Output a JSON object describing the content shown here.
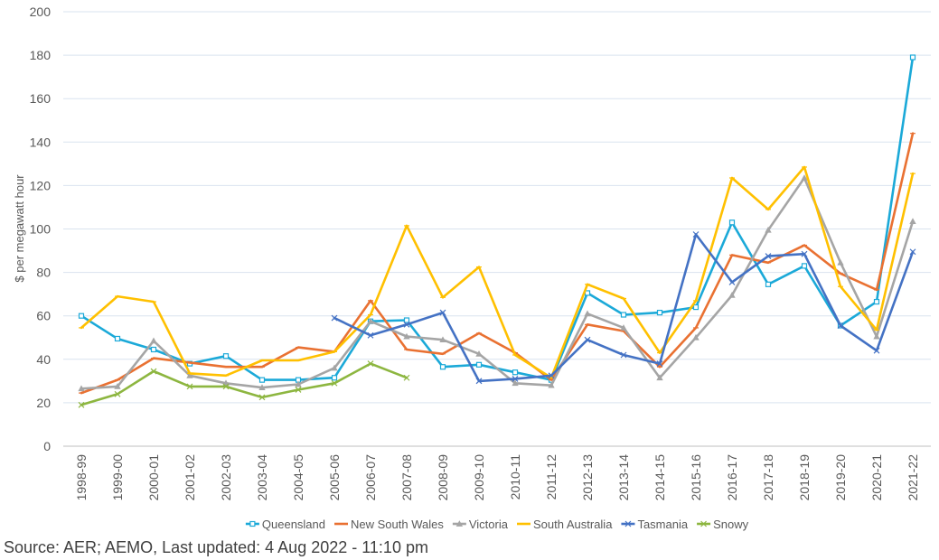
{
  "chart_data": {
    "type": "line",
    "ylabel": "$ per megawatt hour",
    "ylim": [
      0,
      200
    ],
    "yticks": [
      0,
      20,
      40,
      60,
      80,
      100,
      120,
      140,
      160,
      180,
      200
    ],
    "grid": true,
    "legend_position": "bottom",
    "categories": [
      "1998-99",
      "1999-00",
      "2000-01",
      "2001-02",
      "2002-03",
      "2003-04",
      "2004-05",
      "2005-06",
      "2006-07",
      "2007-08",
      "2008-09",
      "2009-10",
      "2010-11",
      "2011-12",
      "2012-13",
      "2013-14",
      "2014-15",
      "2015-16",
      "2016-17",
      "2017-18",
      "2018-19",
      "2019-20",
      "2020-21",
      "2021-22"
    ],
    "series": [
      {
        "name": "Queensland",
        "color": "#1BA9D8",
        "marker": "square",
        "values": [
          60,
          49.5,
          44.5,
          38,
          41.5,
          30.5,
          30.5,
          31.5,
          57.5,
          58,
          36.5,
          37.5,
          34,
          30.5,
          70.5,
          60.5,
          61.5,
          64,
          103,
          74.5,
          83,
          55.5,
          66.5,
          179
        ]
      },
      {
        "name": "New South Wales",
        "color": "#E97132",
        "marker": "line",
        "values": [
          24.5,
          30.5,
          40.5,
          38.5,
          36.5,
          36.5,
          45.5,
          43.5,
          67,
          44.5,
          42.5,
          52,
          43,
          30.5,
          56,
          53,
          36.5,
          54.5,
          88,
          84.5,
          92.5,
          79.5,
          72,
          144
        ]
      },
      {
        "name": "Victoria",
        "color": "#A5A5A5",
        "marker": "triangle",
        "values": [
          26.5,
          27.5,
          48.5,
          32.5,
          29,
          27,
          28.5,
          36,
          57.5,
          50.5,
          49,
          42.5,
          29,
          28,
          61,
          54.5,
          31.5,
          50,
          69.5,
          99.5,
          123.5,
          84.5,
          50.5,
          103.5
        ]
      },
      {
        "name": "South Australia",
        "color": "#FFC000",
        "marker": "line",
        "values": [
          54.5,
          69,
          66.5,
          33.5,
          32.5,
          39.5,
          39.5,
          43.5,
          60.5,
          101.5,
          68.5,
          82.5,
          42,
          31.5,
          74.5,
          68,
          43,
          67,
          123.5,
          109,
          128.5,
          73.5,
          53.5,
          125.5
        ]
      },
      {
        "name": "Tasmania",
        "color": "#4472C4",
        "marker": "x",
        "values": [
          null,
          null,
          null,
          null,
          null,
          null,
          null,
          59,
          51,
          56,
          61.5,
          30,
          31,
          32.5,
          49,
          42,
          38,
          97.5,
          75.5,
          87.5,
          88.5,
          55.5,
          44,
          89.5
        ]
      },
      {
        "name": "Snowy",
        "color": "#8DB640",
        "marker": "x",
        "values": [
          19,
          24,
          34.5,
          27.5,
          27.5,
          22.5,
          26,
          29,
          38,
          31.5,
          null,
          null,
          null,
          null,
          null,
          null,
          null,
          null,
          null,
          null,
          null,
          null,
          null,
          null
        ]
      }
    ]
  },
  "source_note": "Source: AER; AEMO, Last updated: 4 Aug 2022 - 11:10 pm"
}
